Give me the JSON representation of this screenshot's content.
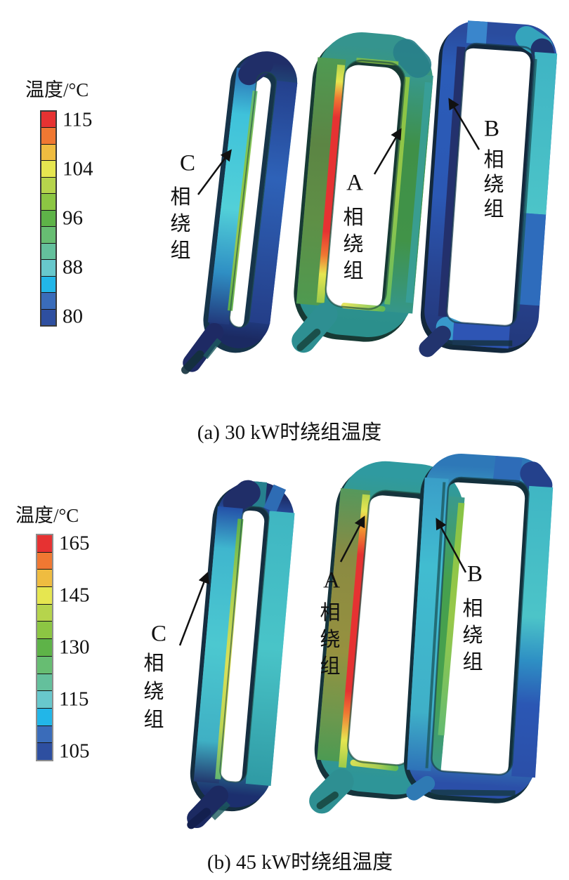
{
  "palette": [
    "#e63232",
    "#f07832",
    "#efbc40",
    "#e6e650",
    "#b6d44c",
    "#8cc643",
    "#5eb348",
    "#67bd72",
    "#64c09c",
    "#68c8cc",
    "#22b6e8",
    "#3a6cba",
    "#2e4fa0"
  ],
  "figures": [
    {
      "caption": "(a) 30 kW时绕组温度",
      "colorbar": {
        "title": "温度/°C",
        "ticks": [
          {
            "label": "115",
            "pos": 0.038
          },
          {
            "label": "104",
            "pos": 0.269
          },
          {
            "label": "96",
            "pos": 0.5
          },
          {
            "label": "88",
            "pos": 0.731
          },
          {
            "label": "80",
            "pos": 0.962
          }
        ]
      },
      "windings": [
        {
          "letter": "C",
          "label": "相绕组"
        },
        {
          "letter": "A",
          "label": "相绕组"
        },
        {
          "letter": "B",
          "label": "相绕组"
        }
      ]
    },
    {
      "caption": "(b) 45 kW时绕组温度",
      "colorbar": {
        "title": "温度/°C",
        "ticks": [
          {
            "label": "165",
            "pos": 0.038
          },
          {
            "label": "145",
            "pos": 0.269
          },
          {
            "label": "130",
            "pos": 0.5
          },
          {
            "label": "115",
            "pos": 0.731
          },
          {
            "label": "105",
            "pos": 0.962
          }
        ]
      },
      "windings": [
        {
          "letter": "C",
          "label": "相绕组"
        },
        {
          "letter": "A",
          "label": "相绕组"
        },
        {
          "letter": "B",
          "label": "相绕组"
        }
      ]
    }
  ],
  "chart_data": [
    {
      "type": "heatmap",
      "title": "(a) 30 kW时绕组温度",
      "colorbar_title": "温度/°C",
      "colorbar_tick_values": [
        115,
        104,
        96,
        88,
        80
      ],
      "temp_range_c": [
        80,
        115
      ],
      "legend_position": "left",
      "series": [
        {
          "name": "A 相绕组",
          "note": "hottest winding; red strip ~115°C along inner left leg, body green ~96°C, top/bottom teal ~90°C"
        },
        {
          "name": "B 相绕组",
          "note": "coolest winding; mostly blue/navy 80-86°C, right leg teal ~88°C"
        },
        {
          "name": "C 相绕组",
          "note": "left leg cyan ~88°C with green inner strip ~96°C, outer edges navy ~80°C"
        }
      ]
    },
    {
      "type": "heatmap",
      "title": "(b) 45 kW时绕组温度",
      "colorbar_title": "温度/°C",
      "colorbar_tick_values": [
        165,
        145,
        130,
        115,
        105
      ],
      "temp_range_c": [
        105,
        165
      ],
      "legend_position": "left",
      "series": [
        {
          "name": "A 相绕组",
          "note": "hottest winding; red strip ~165°C along inner left leg, olive left leg ~140°C, green right leg ~130°C, teal top/bottom"
        },
        {
          "name": "B 相绕组",
          "note": "mostly teal/cyan ~115°C, royal blue bottom and top-right ~105-110°C"
        },
        {
          "name": "C 相绕组",
          "note": "teal legs ~115°C with yellow inner strip ~145°C, navy corners ~105°C"
        }
      ]
    }
  ]
}
